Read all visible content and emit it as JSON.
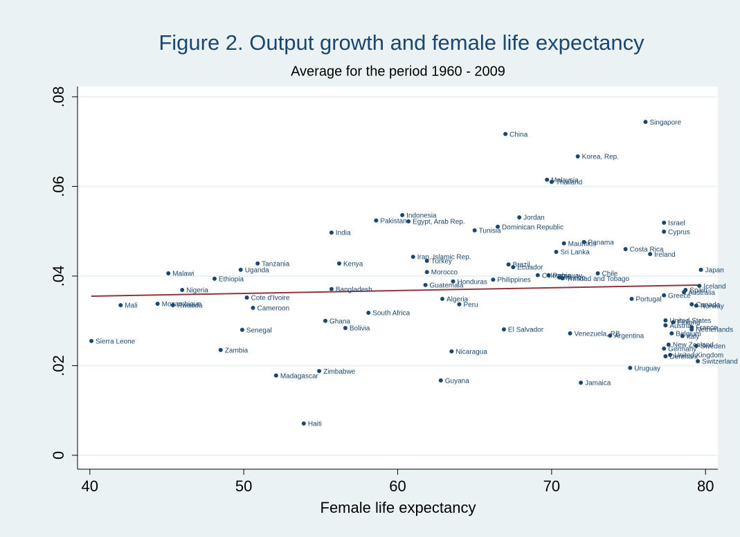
{
  "chart_data": {
    "type": "scatter",
    "title": "Figure 2. Output growth and female life expectancy",
    "subtitle": "Average for the period 1960 - 2009",
    "x_label": "Female life expectancy",
    "xlim": [
      39.2,
      80.8
    ],
    "ylim": [
      -0.0031,
      0.0823
    ],
    "xticks": [
      40,
      50,
      60,
      70,
      80
    ],
    "yticks": [
      {
        "value": 0,
        "label": "0"
      },
      {
        "value": 0.02,
        "label": ".02"
      },
      {
        "value": 0.04,
        "label": ".04"
      },
      {
        "value": 0.06,
        "label": ".06"
      },
      {
        "value": 0.08,
        "label": ".08"
      }
    ],
    "grid": true,
    "color": "#1a476f",
    "point_labels": [
      "Sierra Leone",
      "Mali",
      "Mozambique",
      "Rwanda",
      "Malawi",
      "Nigeria",
      "Ethiopia",
      "Zambia",
      "Uganda",
      "Senegal",
      "Cote d'Ivoire",
      "Tanzania",
      "Cameroon",
      "Madagascar",
      "Haiti",
      "Zimbabwe",
      "Ghana",
      "India",
      "Bangladesh",
      "Kenya",
      "Bolivia",
      "South Africa",
      "Pakistan",
      "Indonesia",
      "Egypt, Arab Rep.",
      "Iran, Islamic Rep.",
      "Turkey",
      "Morocco",
      "Guatemala",
      "Algeria",
      "Guyana",
      "Peru",
      "Nicaragua",
      "Honduras",
      "Tunisia",
      "Dominican Republic",
      "Philippines",
      "China",
      "El Salvador",
      "Brazil",
      "Ecuador",
      "Jordan",
      "Colombia",
      "Paraguay",
      "Malaysia",
      "Thailand",
      "Mexico",
      "Trinidad and Tobago",
      "Mauritius",
      "Sri Lanka",
      "Venezuela, RB",
      "Korea, Rep.",
      "Jamaica",
      "Panama",
      "Chile",
      "Argentina",
      "Costa Rica",
      "Portugal",
      "Uruguay",
      "Singapore",
      "Ireland",
      "Greece",
      "Israel",
      "Cyprus",
      "United States",
      "Austria",
      "Finland",
      "Germany",
      "New Zealand",
      "Denmark",
      "United Kingdom",
      "Belgium",
      "Italy",
      "Spain",
      "Australia",
      "Canada",
      "Norway",
      "France",
      "Netherlands",
      "Sweden",
      "Switzerland",
      "Iceland",
      "Japan"
    ],
    "x": [
      40.1,
      42.0,
      44.4,
      45.4,
      45.1,
      46.0,
      48.1,
      48.5,
      49.8,
      49.9,
      50.2,
      50.9,
      50.6,
      52.1,
      53.9,
      54.9,
      55.3,
      55.7,
      55.7,
      56.2,
      56.6,
      58.1,
      58.6,
      60.3,
      60.7,
      61.0,
      61.9,
      61.9,
      61.8,
      62.9,
      62.8,
      64.0,
      63.5,
      63.6,
      65.0,
      66.5,
      66.2,
      67.0,
      66.9,
      67.2,
      67.5,
      67.9,
      69.1,
      69.8,
      69.7,
      70.0,
      70.5,
      70.7,
      70.8,
      70.3,
      71.2,
      71.7,
      71.9,
      72.1,
      73.0,
      73.8,
      74.8,
      75.2,
      75.1,
      76.1,
      76.4,
      77.3,
      77.3,
      77.3,
      77.4,
      77.4,
      77.9,
      77.3,
      77.6,
      77.4,
      77.7,
      77.8,
      78.5,
      78.7,
      78.6,
      79.1,
      79.4,
      79.1,
      79.1,
      79.4,
      79.5,
      79.6,
      79.7
    ],
    "values": [
      0.0255,
      0.0335,
      0.0338,
      0.0335,
      0.0406,
      0.0369,
      0.0394,
      0.0235,
      0.0414,
      0.028,
      0.0352,
      0.0428,
      0.0329,
      0.0178,
      0.0071,
      0.0188,
      0.03,
      0.0497,
      0.0371,
      0.0428,
      0.0284,
      0.0318,
      0.0524,
      0.0536,
      0.0522,
      0.0443,
      0.0434,
      0.0409,
      0.038,
      0.0349,
      0.0167,
      0.0337,
      0.0232,
      0.0388,
      0.0502,
      0.051,
      0.0392,
      0.0717,
      0.0281,
      0.0426,
      0.042,
      0.0531,
      0.0402,
      0.0402,
      0.0615,
      0.061,
      0.0397,
      0.0395,
      0.0473,
      0.0454,
      0.0272,
      0.0667,
      0.0162,
      0.0476,
      0.0406,
      0.0267,
      0.046,
      0.0349,
      0.0195,
      0.0744,
      0.0449,
      0.0357,
      0.0519,
      0.0499,
      0.0301,
      0.029,
      0.0297,
      0.0238,
      0.0247,
      0.0221,
      0.0224,
      0.0272,
      0.0266,
      0.0369,
      0.0364,
      0.0337,
      0.0334,
      0.0286,
      0.0281,
      0.0244,
      0.021,
      0.0378,
      0.0414
    ],
    "fit_line": {
      "x": [
        40.1,
        79.7
      ],
      "values": [
        0.0355,
        0.038
      ],
      "color": "#90353b"
    }
  }
}
